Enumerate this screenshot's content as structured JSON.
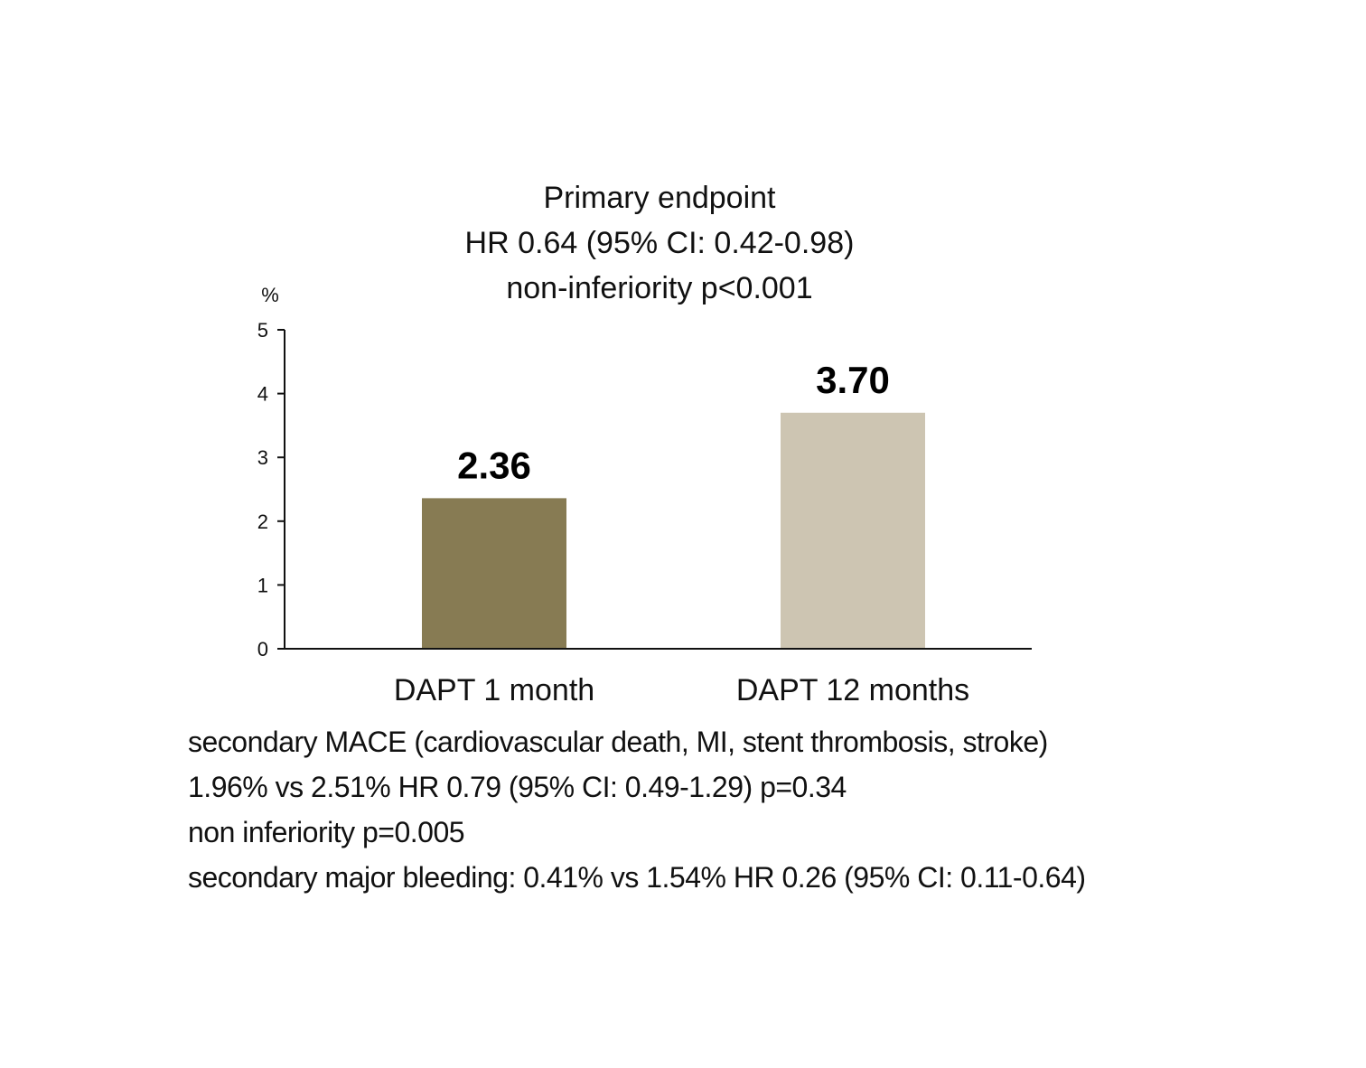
{
  "chart_data": {
    "type": "bar",
    "title": [
      "Primary endpoint",
      "HR 0.64 (95% CI: 0.42-0.98)",
      "non-inferiority p<0.001"
    ],
    "ylabel": "%",
    "xlabel": "",
    "ylim": [
      0,
      5
    ],
    "yticks": [
      0,
      1,
      2,
      3,
      4,
      5
    ],
    "categories": [
      "DAPT 1 month",
      "DAPT 12 months"
    ],
    "values": [
      2.36,
      3.7
    ],
    "value_labels": [
      "2.36",
      "3.70"
    ],
    "colors": [
      "#877b53",
      "#cdc5b2"
    ],
    "grid": false,
    "legend": "none"
  },
  "notes": [
    "secondary MACE (cardiovascular death, MI, stent thrombosis, stroke)",
    "1.96% vs 2.51% HR 0.79 (95% CI: 0.49-1.29) p=0.34",
    "non inferiority p=0.005",
    "secondary major bleeding: 0.41% vs 1.54% HR 0.26 (95% CI: 0.11-0.64)"
  ]
}
